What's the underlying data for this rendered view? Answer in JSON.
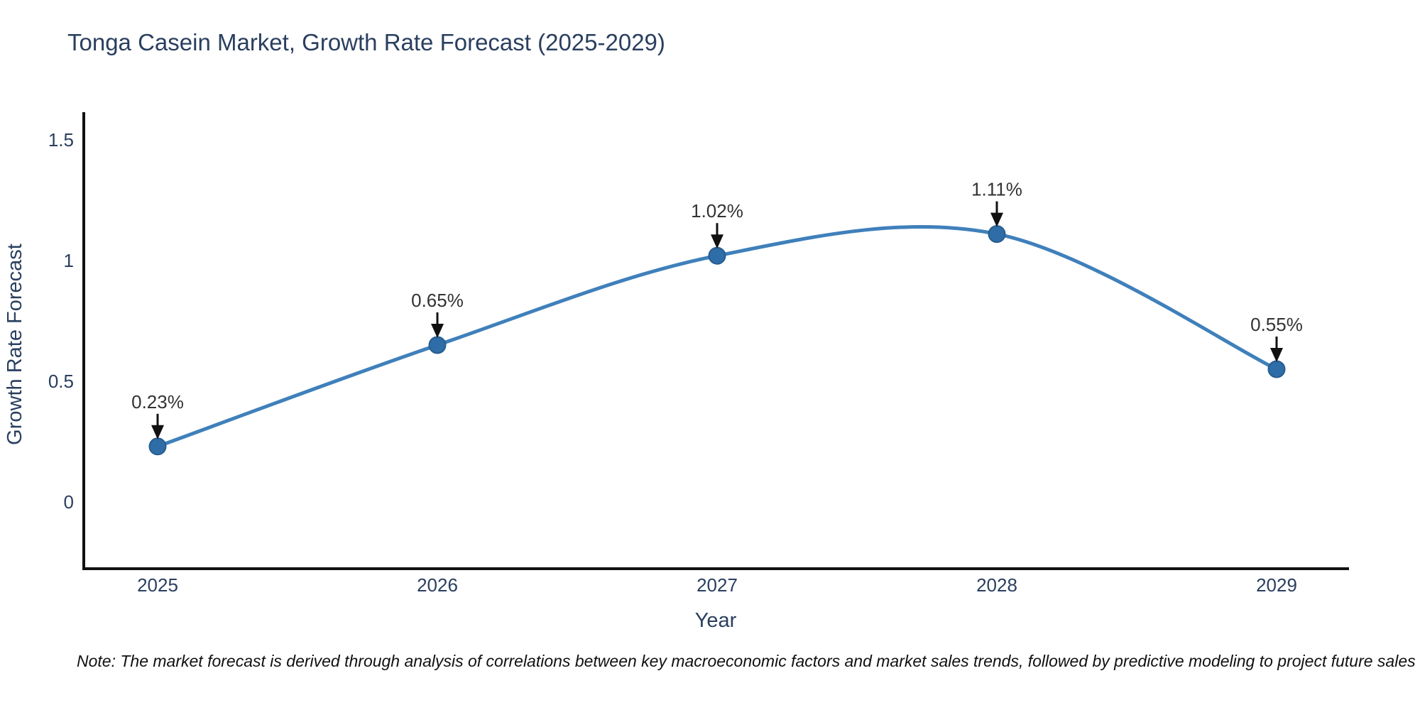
{
  "title": "Tonga Casein Market, Growth Rate Forecast (2025-2029)",
  "note": "Note: The market forecast is derived through analysis of correlations between key macroeconomic factors and market sales trends, followed by predictive modeling to project future sales",
  "chart_data": {
    "type": "line",
    "title": "Tonga Casein Market, Growth Rate Forecast (2025-2029)",
    "xlabel": "Year",
    "ylabel": "Growth Rate Forecast",
    "x": [
      2025,
      2026,
      2027,
      2028,
      2029
    ],
    "categories": [
      "2025",
      "2026",
      "2027",
      "2028",
      "2029"
    ],
    "values": [
      0.23,
      0.65,
      1.02,
      1.11,
      0.55
    ],
    "point_labels": [
      "0.23%",
      "0.65%",
      "1.02%",
      "1.11%",
      "0.55%"
    ],
    "yticks": [
      0,
      0.5,
      1,
      1.5
    ],
    "ylim": [
      -0.28,
      1.61
    ],
    "xlim": [
      2024.74,
      2029.26
    ],
    "line_shape": "spline",
    "grid": false,
    "legend": "none",
    "colors": {
      "line": "#3f80bb",
      "marker": "#2e6da8",
      "marker_edge": "#275d8e",
      "annotation_text": "#333333",
      "annotation_arrow": "#111111",
      "axis_text": "#2a3f5f",
      "axis_line": "#111111",
      "background": "#ffffff"
    }
  }
}
